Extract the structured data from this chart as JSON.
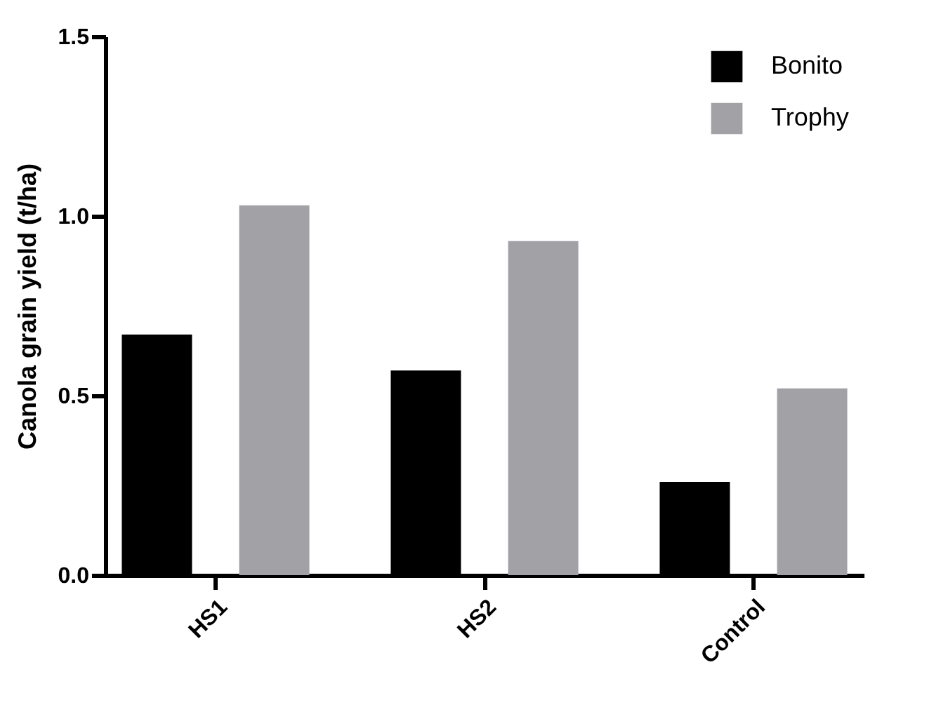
{
  "chart_data": {
    "type": "bar",
    "ylabel": "Canola grain yield (t/ha)",
    "categories": [
      "HS1",
      "HS2",
      "Control"
    ],
    "series": [
      {
        "name": "Bonito",
        "color": "#000000",
        "values": [
          0.67,
          0.57,
          0.26
        ]
      },
      {
        "name": "Trophy",
        "color": "#a2a1a6",
        "values": [
          1.03,
          0.93,
          0.52
        ]
      }
    ],
    "ylim": [
      0,
      1.5
    ],
    "yticks": [
      {
        "value": 0,
        "label": "0.0"
      },
      {
        "value": 0.5,
        "label": "0.5"
      },
      {
        "value": 1,
        "label": "1.0"
      },
      {
        "value": 1.5,
        "label": "1.5"
      }
    ],
    "grid": false,
    "legend": "top right"
  }
}
